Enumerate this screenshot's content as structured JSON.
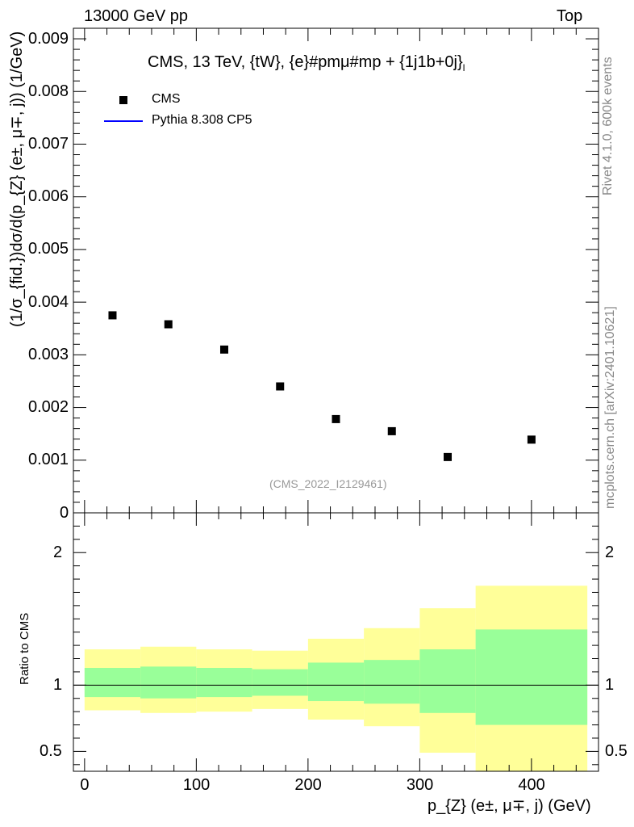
{
  "header": {
    "left": "13000 GeV pp",
    "right": "Top"
  },
  "side_labels": {
    "rivet": "Rivet 4.1.0,  600k events",
    "source": "mcplots.cern.ch [arXiv:2401.10621]"
  },
  "colors": {
    "data_marker": "#000000",
    "mc_line": "#0000ff",
    "band_inner": "#99ff99",
    "band_outer": "#ffff99"
  },
  "chart_data": [
    {
      "type": "scatter",
      "panel": "main",
      "title": "CMS, 13 TeV, {tW}, {e}#pmμ#mp + {1j1b+0j}",
      "title_sub": "l",
      "analysis_tag": "(CMS_2022_I2129461)",
      "ylabel": "(1/σ_{fid.})dσ/d(p_{Z} (e±, μ∓, j)) (1/GeV)",
      "xlim": [
        -10,
        460
      ],
      "ylim": [
        0,
        0.0092
      ],
      "yticks": [
        0,
        0.001,
        0.002,
        0.003,
        0.004,
        0.005,
        0.006,
        0.007,
        0.008,
        0.009
      ],
      "ytick_labels": [
        "0",
        "0.001",
        "0.002",
        "0.003",
        "0.004",
        "0.005",
        "0.006",
        "0.007",
        "0.008",
        "0.009"
      ],
      "legend": [
        {
          "name": "CMS",
          "style": "marker"
        },
        {
          "name": "Pythia 8.308 CP5",
          "style": "line"
        }
      ],
      "series": [
        {
          "name": "CMS",
          "x": [
            25,
            75,
            125,
            175,
            225,
            275,
            325,
            400
          ],
          "values": [
            0.00375,
            0.00358,
            0.0031,
            0.0024,
            0.00178,
            0.00155,
            0.00106,
            0.00139
          ]
        }
      ]
    },
    {
      "type": "area",
      "panel": "ratio",
      "ylabel": "Ratio to CMS",
      "xlabel": "p_{Z} (e±, μ∓, j) (GeV)",
      "xlim": [
        -10,
        460
      ],
      "ylim": [
        0.35,
        2.3
      ],
      "yticks": [
        0.5,
        1,
        2
      ],
      "ytick_labels": [
        "0.5",
        "1",
        "2"
      ],
      "xticks": [
        0,
        100,
        200,
        300,
        400
      ],
      "xtick_labels": [
        "0",
        "100",
        "200",
        "300",
        "400"
      ],
      "bins": [
        {
          "x_low": 0,
          "x_high": 50,
          "inner": [
            0.91,
            1.13
          ],
          "outer": [
            0.81,
            1.27
          ]
        },
        {
          "x_low": 50,
          "x_high": 100,
          "inner": [
            0.9,
            1.14
          ],
          "outer": [
            0.79,
            1.29
          ]
        },
        {
          "x_low": 100,
          "x_high": 150,
          "inner": [
            0.91,
            1.13
          ],
          "outer": [
            0.8,
            1.27
          ]
        },
        {
          "x_low": 150,
          "x_high": 200,
          "inner": [
            0.92,
            1.12
          ],
          "outer": [
            0.82,
            1.26
          ]
        },
        {
          "x_low": 200,
          "x_high": 250,
          "inner": [
            0.88,
            1.17
          ],
          "outer": [
            0.74,
            1.35
          ]
        },
        {
          "x_low": 250,
          "x_high": 300,
          "inner": [
            0.86,
            1.19
          ],
          "outer": [
            0.69,
            1.43
          ]
        },
        {
          "x_low": 300,
          "x_high": 350,
          "inner": [
            0.79,
            1.27
          ],
          "outer": [
            0.49,
            1.58
          ]
        },
        {
          "x_low": 350,
          "x_high": 450,
          "inner": [
            0.7,
            1.42
          ],
          "outer": [
            0.35,
            1.75
          ]
        }
      ],
      "reference_line": 1
    }
  ]
}
